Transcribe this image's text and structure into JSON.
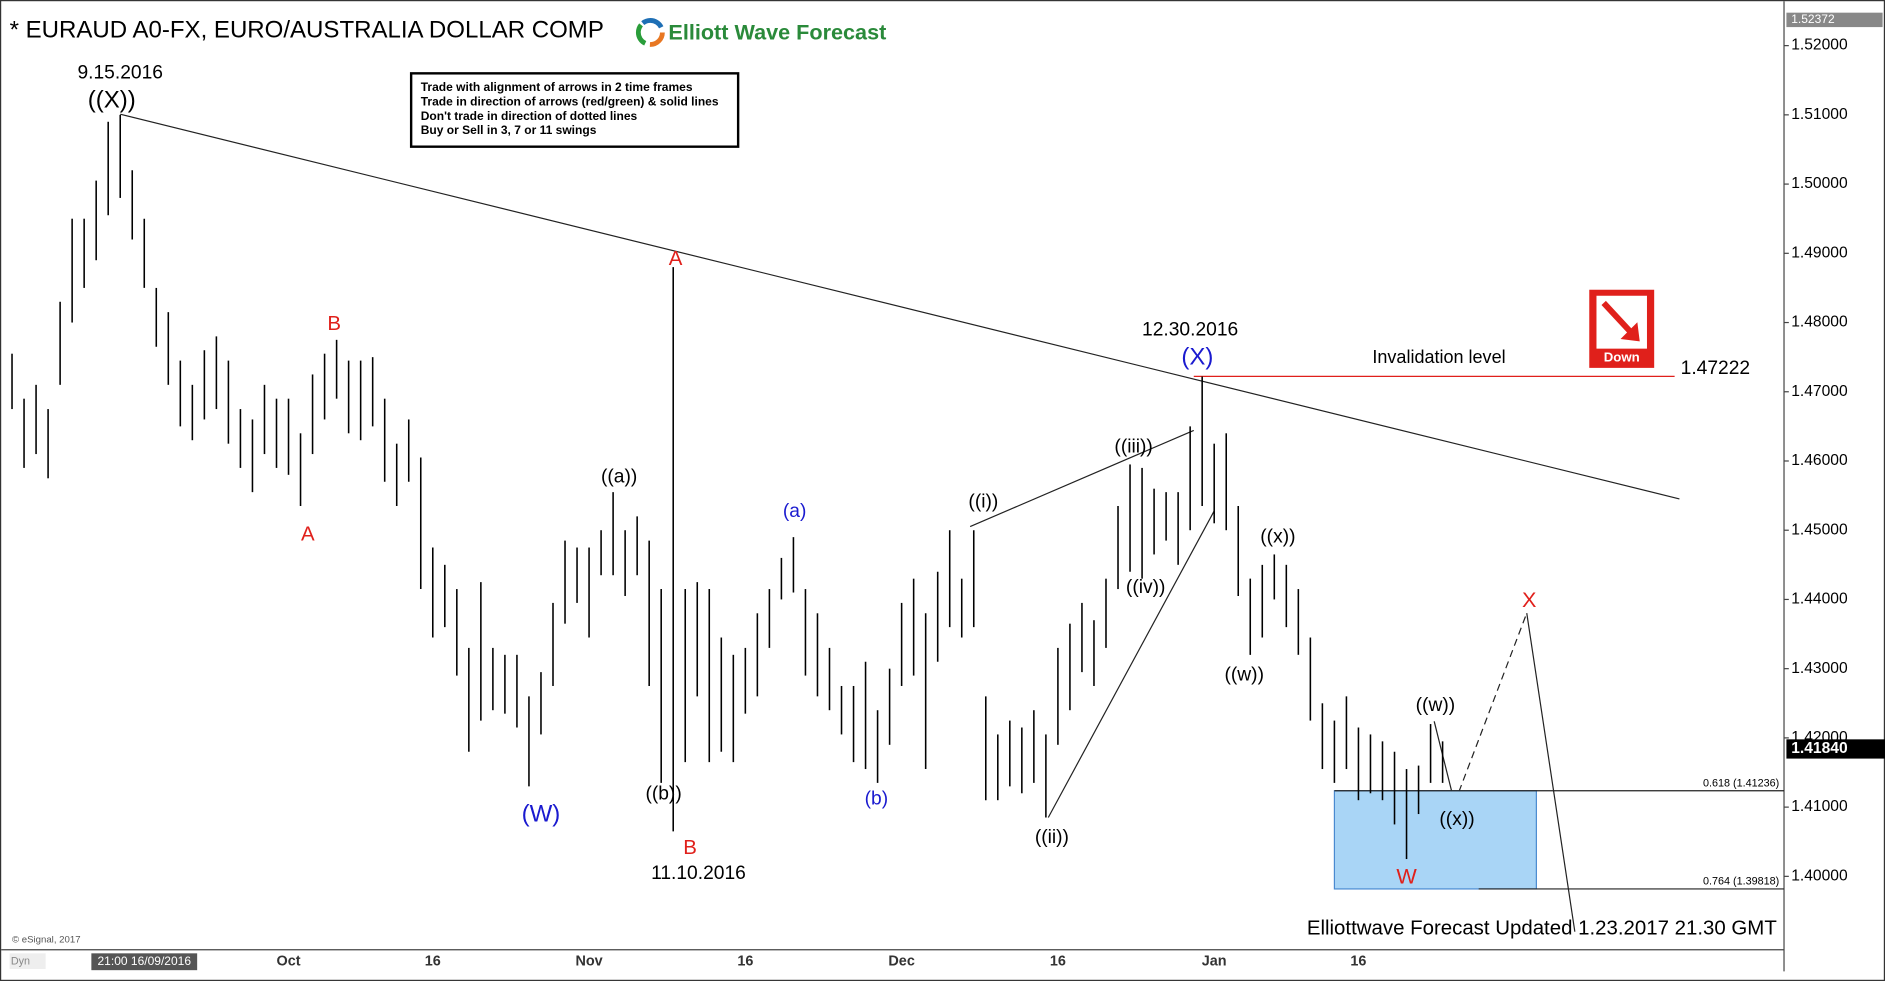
{
  "chart_data": {
    "type": "range",
    "title": "* EURAUD A0-FX, EURO/AUSTRALIA DOLLAR COMP",
    "logo": "Elliott Wave Forecast",
    "color": "#000000",
    "categories": [
      null,
      null,
      null,
      null,
      null,
      null,
      null,
      null,
      null,
      null,
      null,
      "21:00 16/09/2016",
      null,
      null,
      null,
      null,
      null,
      null,
      null,
      null,
      null,
      null,
      null,
      "Oct",
      null,
      null,
      null,
      null,
      null,
      null,
      null,
      null,
      null,
      null,
      null,
      "16",
      null,
      null,
      null,
      null,
      null,
      null,
      null,
      null,
      null,
      null,
      null,
      null,
      "Nov",
      null,
      null,
      null,
      null,
      null,
      null,
      null,
      null,
      null,
      null,
      null,
      null,
      "16",
      null,
      null,
      null,
      null,
      null,
      null,
      null,
      null,
      null,
      null,
      null,
      null,
      "Dec",
      null,
      null,
      null,
      null,
      null,
      null,
      null,
      null,
      null,
      null,
      null,
      null,
      "16",
      null,
      null,
      null,
      null,
      null,
      null,
      null,
      null,
      null,
      null,
      null,
      null,
      "Jan",
      null,
      null,
      null,
      null,
      null,
      null,
      null,
      null,
      null,
      null,
      null,
      "16",
      null,
      null,
      null,
      null,
      null,
      null,
      null
    ],
    "high": [
      1.4755,
      1.469,
      1.471,
      1.4675,
      1.483,
      1.495,
      1.495,
      1.5005,
      1.509,
      1.51,
      1.502,
      1.495,
      1.485,
      1.4815,
      1.4745,
      1.471,
      1.476,
      1.478,
      1.4745,
      1.4675,
      1.466,
      1.471,
      1.469,
      1.469,
      1.464,
      1.4725,
      1.4755,
      1.4775,
      1.4745,
      1.4745,
      1.475,
      1.469,
      1.4625,
      1.466,
      1.4605,
      1.4475,
      1.445,
      1.4415,
      1.433,
      1.4425,
      1.433,
      1.432,
      1.432,
      1.426,
      1.4295,
      1.4395,
      1.4485,
      1.4475,
      1.4475,
      1.45,
      1.4555,
      1.45,
      1.452,
      1.4485,
      1.4415,
      1.488,
      1.4415,
      1.4425,
      1.4415,
      1.4345,
      1.432,
      1.433,
      1.438,
      1.4415,
      1.446,
      1.449,
      1.4415,
      1.438,
      1.433,
      1.4275,
      1.4275,
      1.431,
      1.424,
      1.43,
      1.4395,
      1.443,
      1.438,
      1.444,
      1.45,
      1.443,
      1.45,
      1.426,
      1.4205,
      1.4225,
      1.4215,
      1.424,
      1.4205,
      1.433,
      1.4365,
      1.4395,
      1.437,
      1.443,
      1.4535,
      1.4595,
      1.459,
      1.456,
      1.4555,
      1.4555,
      1.465,
      1.4722,
      1.4625,
      1.464,
      1.4535,
      1.443,
      1.445,
      1.4465,
      1.445,
      1.4415,
      1.4345,
      1.425,
      1.4225,
      1.426,
      1.4215,
      1.4205,
      1.4195,
      1.418,
      1.4155,
      1.416,
      1.422,
      1.4195
    ],
    "low": [
      1.4675,
      1.459,
      1.461,
      1.4575,
      1.471,
      1.48,
      1.485,
      1.489,
      1.4955,
      1.498,
      1.492,
      1.485,
      1.4765,
      1.471,
      1.465,
      1.463,
      1.466,
      1.4675,
      1.4625,
      1.459,
      1.4555,
      1.461,
      1.459,
      1.458,
      1.4535,
      1.461,
      1.466,
      1.469,
      1.464,
      1.463,
      1.465,
      1.457,
      1.4535,
      1.457,
      1.4415,
      1.4345,
      1.436,
      1.429,
      1.418,
      1.4225,
      1.424,
      1.4235,
      1.4215,
      1.413,
      1.4205,
      1.4275,
      1.4365,
      1.4395,
      1.4345,
      1.4435,
      1.4435,
      1.4405,
      1.4435,
      1.4275,
      1.4135,
      1.4065,
      1.4165,
      1.426,
      1.4165,
      1.418,
      1.4165,
      1.4235,
      1.426,
      1.433,
      1.44,
      1.441,
      1.429,
      1.426,
      1.424,
      1.4205,
      1.4165,
      1.4155,
      1.4135,
      1.419,
      1.4275,
      1.429,
      1.4155,
      1.431,
      1.436,
      1.4345,
      1.436,
      1.411,
      1.411,
      1.413,
      1.412,
      1.4135,
      1.4085,
      1.419,
      1.424,
      1.4295,
      1.4275,
      1.433,
      1.4415,
      1.444,
      1.443,
      1.4465,
      1.4485,
      1.445,
      1.45,
      1.4535,
      1.451,
      1.45,
      1.4405,
      1.432,
      1.4345,
      1.44,
      1.436,
      1.432,
      1.4225,
      1.4155,
      1.4135,
      1.4155,
      1.411,
      1.412,
      1.411,
      1.4075,
      1.4025,
      1.409,
      1.4135,
      1.4135
    ],
    "ylim": [
      1.3894,
      1.5252
    ],
    "yticks": [
      {
        "value": 1.4,
        "label": "1.40000"
      },
      {
        "value": 1.41,
        "label": "1.41000"
      },
      {
        "value": 1.42,
        "label": "1.42000"
      },
      {
        "value": 1.43,
        "label": "1.43000"
      },
      {
        "value": 1.44,
        "label": "1.44000"
      },
      {
        "value": 1.45,
        "label": "1.45000"
      },
      {
        "value": 1.46,
        "label": "1.46000"
      },
      {
        "value": 1.47,
        "label": "1.47000"
      },
      {
        "value": 1.48,
        "label": "1.48000"
      },
      {
        "value": 1.49,
        "label": "1.49000"
      },
      {
        "value": 1.5,
        "label": "1.50000"
      },
      {
        "value": 1.51,
        "label": "1.51000"
      },
      {
        "value": 1.52,
        "label": "1.52000"
      }
    ],
    "top_price": 1.52372,
    "last_price": {
      "value": 1.4184,
      "label": "1.41840"
    },
    "invalidation": {
      "text": "Invalidation level",
      "value": 1.47222
    },
    "fib_levels": [
      {
        "value": 1.41236,
        "label": "0.618 (1.41236)"
      },
      {
        "value": 1.39818,
        "label": "0.764 (1.39818)"
      }
    ],
    "annotations": [
      {
        "text": "9.15.2016",
        "color": "#000000"
      },
      {
        "text": "((X))",
        "color": "#000000"
      },
      {
        "text": "B",
        "color": "#e0201b"
      },
      {
        "text": "A",
        "color": "#e0201b"
      },
      {
        "text": "A",
        "color": "#e0201b"
      },
      {
        "text": "B",
        "color": "#e0201b"
      },
      {
        "text": "11.10.2016",
        "color": "#000000"
      },
      {
        "text": "((a))",
        "color": "#000000"
      },
      {
        "text": "((b))",
        "color": "#000000"
      },
      {
        "text": "(W)",
        "color": "#1a1acf"
      },
      {
        "text": "(a)",
        "color": "#1a1acf"
      },
      {
        "text": "(b)",
        "color": "#1a1acf"
      },
      {
        "text": "((i))",
        "color": "#000000"
      },
      {
        "text": "((ii))",
        "color": "#000000"
      },
      {
        "text": "((iii))",
        "color": "#000000"
      },
      {
        "text": "((iv))",
        "color": "#000000"
      },
      {
        "text": "12.30.2016",
        "color": "#000000"
      },
      {
        "text": "(X)",
        "color": "#1a1acf"
      },
      {
        "text": "((w))",
        "color": "#000000"
      },
      {
        "text": "((x))",
        "color": "#000000"
      },
      {
        "text": "((w))",
        "color": "#000000"
      },
      {
        "text": "((x))",
        "color": "#000000"
      },
      {
        "text": "W",
        "color": "#e0201b"
      },
      {
        "text": "X",
        "color": "#e0201b"
      }
    ],
    "rules": [
      "Trade with alignment of arrows in 2 time frames",
      "Trade in direction of arrows (red/green) & solid lines",
      "Don't trade in direction of dotted lines",
      "Buy or Sell in 3, 7 or 11 swings"
    ],
    "signal": "Down",
    "footer": "Elliottwave Forecast Updated 1.23.2017 21.30 GMT",
    "copyright": "© eSignal, 2017",
    "corner": "Dyn"
  }
}
